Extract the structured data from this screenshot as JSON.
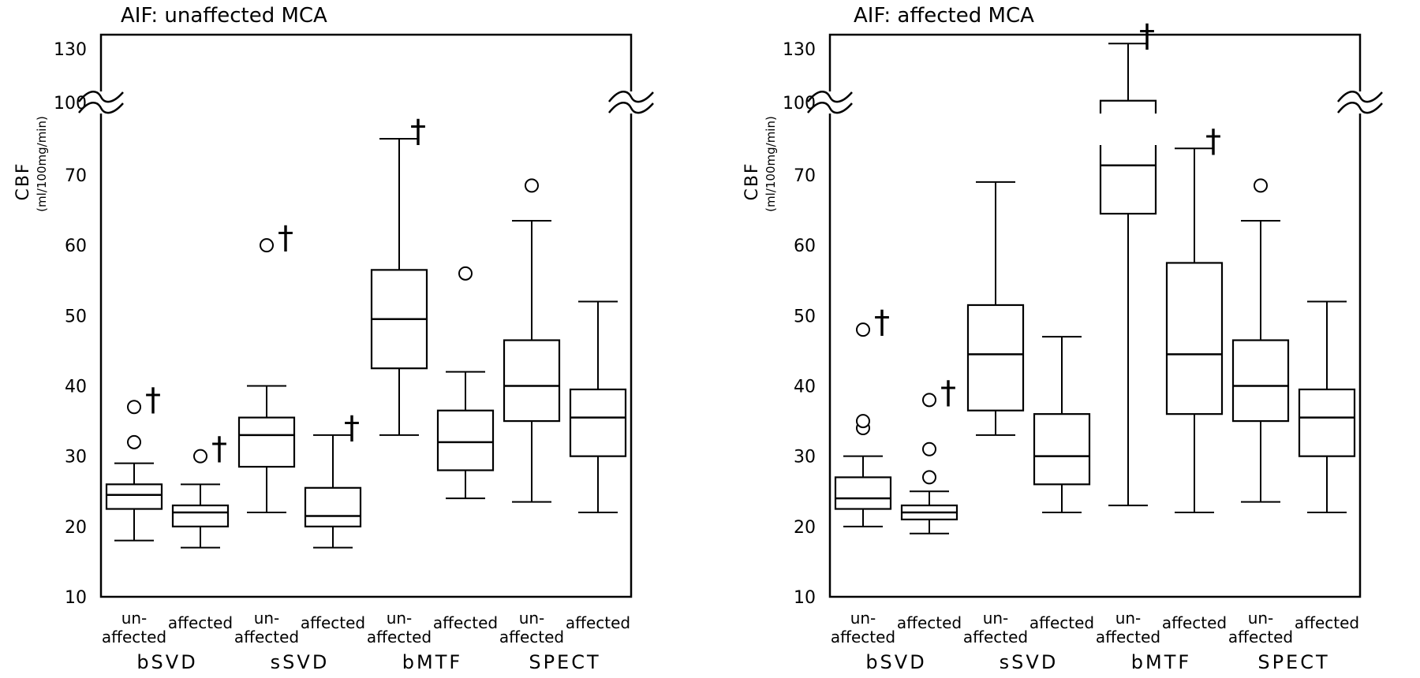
{
  "chart_data": [
    {
      "type": "boxplot",
      "title": "AIF: unaffected MCA",
      "ylabel": "CBF",
      "ylabel_unit": "(ml/100mg/min)",
      "yticks": [
        10,
        20,
        30,
        40,
        50,
        60,
        70,
        100,
        130
      ],
      "axis_break": [
        70,
        100
      ],
      "grid": false,
      "groups": [
        "bSVD",
        "sSVD",
        "bMTF",
        "SPECT"
      ],
      "categories": [
        {
          "group": "bSVD",
          "label": [
            "un-",
            "affected"
          ],
          "min": 18,
          "q1": 22.5,
          "median": 24.5,
          "q3": 26,
          "max": 29,
          "outliers": [
            32,
            37
          ],
          "dagger": true
        },
        {
          "group": "bSVD",
          "label": [
            "affected"
          ],
          "min": 17,
          "q1": 20,
          "median": 22,
          "q3": 23,
          "max": 26,
          "outliers": [
            30
          ],
          "dagger": true
        },
        {
          "group": "sSVD",
          "label": [
            "un-",
            "affected"
          ],
          "min": 22,
          "q1": 28.5,
          "median": 33,
          "q3": 35.5,
          "max": 40,
          "outliers": [
            60
          ],
          "dagger": true
        },
        {
          "group": "sSVD",
          "label": [
            "affected"
          ],
          "min": 17,
          "q1": 20,
          "median": 21.5,
          "q3": 25.5,
          "max": 33,
          "outliers": [],
          "dagger": true
        },
        {
          "group": "bMTF",
          "label": [
            "un-",
            "affected"
          ],
          "min": 33,
          "q1": 42.5,
          "median": 49.5,
          "q3": 56.5,
          "max": 85,
          "outliers": [],
          "dagger": true
        },
        {
          "group": "bMTF",
          "label": [
            "affected"
          ],
          "min": 24,
          "q1": 28,
          "median": 32,
          "q3": 36.5,
          "max": 42,
          "outliers": [
            56
          ],
          "dagger": false
        },
        {
          "group": "SPECT",
          "label": [
            "un-",
            "affected"
          ],
          "min": 23.5,
          "q1": 35,
          "median": 40,
          "q3": 46.5,
          "max": 63.5,
          "outliers": [
            68.5
          ],
          "dagger": false
        },
        {
          "group": "SPECT",
          "label": [
            "affected"
          ],
          "min": 22,
          "q1": 30,
          "median": 35.5,
          "q3": 39.5,
          "max": 52,
          "outliers": [],
          "dagger": false
        }
      ]
    },
    {
      "type": "boxplot",
      "title": "AIF: affected MCA",
      "ylabel": "CBF",
      "ylabel_unit": "(ml/100mg/min)",
      "yticks": [
        10,
        20,
        30,
        40,
        50,
        60,
        70,
        100,
        130
      ],
      "axis_break": [
        70,
        100
      ],
      "grid": false,
      "groups": [
        "bSVD",
        "sSVD",
        "bMTF",
        "SPECT"
      ],
      "categories": [
        {
          "group": "bSVD",
          "label": [
            "un-",
            "affected"
          ],
          "min": 20,
          "q1": 22.5,
          "median": 24,
          "q3": 27,
          "max": 30,
          "outliers": [
            34,
            35,
            48
          ],
          "dagger": true
        },
        {
          "group": "bSVD",
          "label": [
            "affected"
          ],
          "min": 19,
          "q1": 21,
          "median": 22,
          "q3": 23,
          "max": 25,
          "outliers": [
            27,
            31,
            38
          ],
          "dagger": true
        },
        {
          "group": "sSVD",
          "label": [
            "un-",
            "affected"
          ],
          "min": 33,
          "q1": 36.5,
          "median": 44.5,
          "q3": 51.5,
          "max": 69,
          "outliers": [],
          "dagger": false
        },
        {
          "group": "sSVD",
          "label": [
            "affected"
          ],
          "min": 22,
          "q1": 26,
          "median": 30,
          "q3": 36,
          "max": 47,
          "outliers": [],
          "dagger": false
        },
        {
          "group": "bMTF",
          "label": [
            "un-",
            "affected"
          ],
          "min": 23,
          "q1": 64.5,
          "median": 74,
          "q3": 101,
          "max": 133,
          "outliers": [],
          "dagger": true
        },
        {
          "group": "bMTF",
          "label": [
            "affected"
          ],
          "min": 22,
          "q1": 36,
          "median": 44.5,
          "q3": 57.5,
          "max": 81,
          "outliers": [],
          "dagger": true
        },
        {
          "group": "SPECT",
          "label": [
            "un-",
            "affected"
          ],
          "min": 23.5,
          "q1": 35,
          "median": 40,
          "q3": 46.5,
          "max": 63.5,
          "outliers": [
            68.5
          ],
          "dagger": false
        },
        {
          "group": "SPECT",
          "label": [
            "affected"
          ],
          "min": 22,
          "q1": 30,
          "median": 35.5,
          "q3": 39.5,
          "max": 52,
          "outliers": [],
          "dagger": false
        }
      ]
    }
  ],
  "dagger_symbol": "†"
}
